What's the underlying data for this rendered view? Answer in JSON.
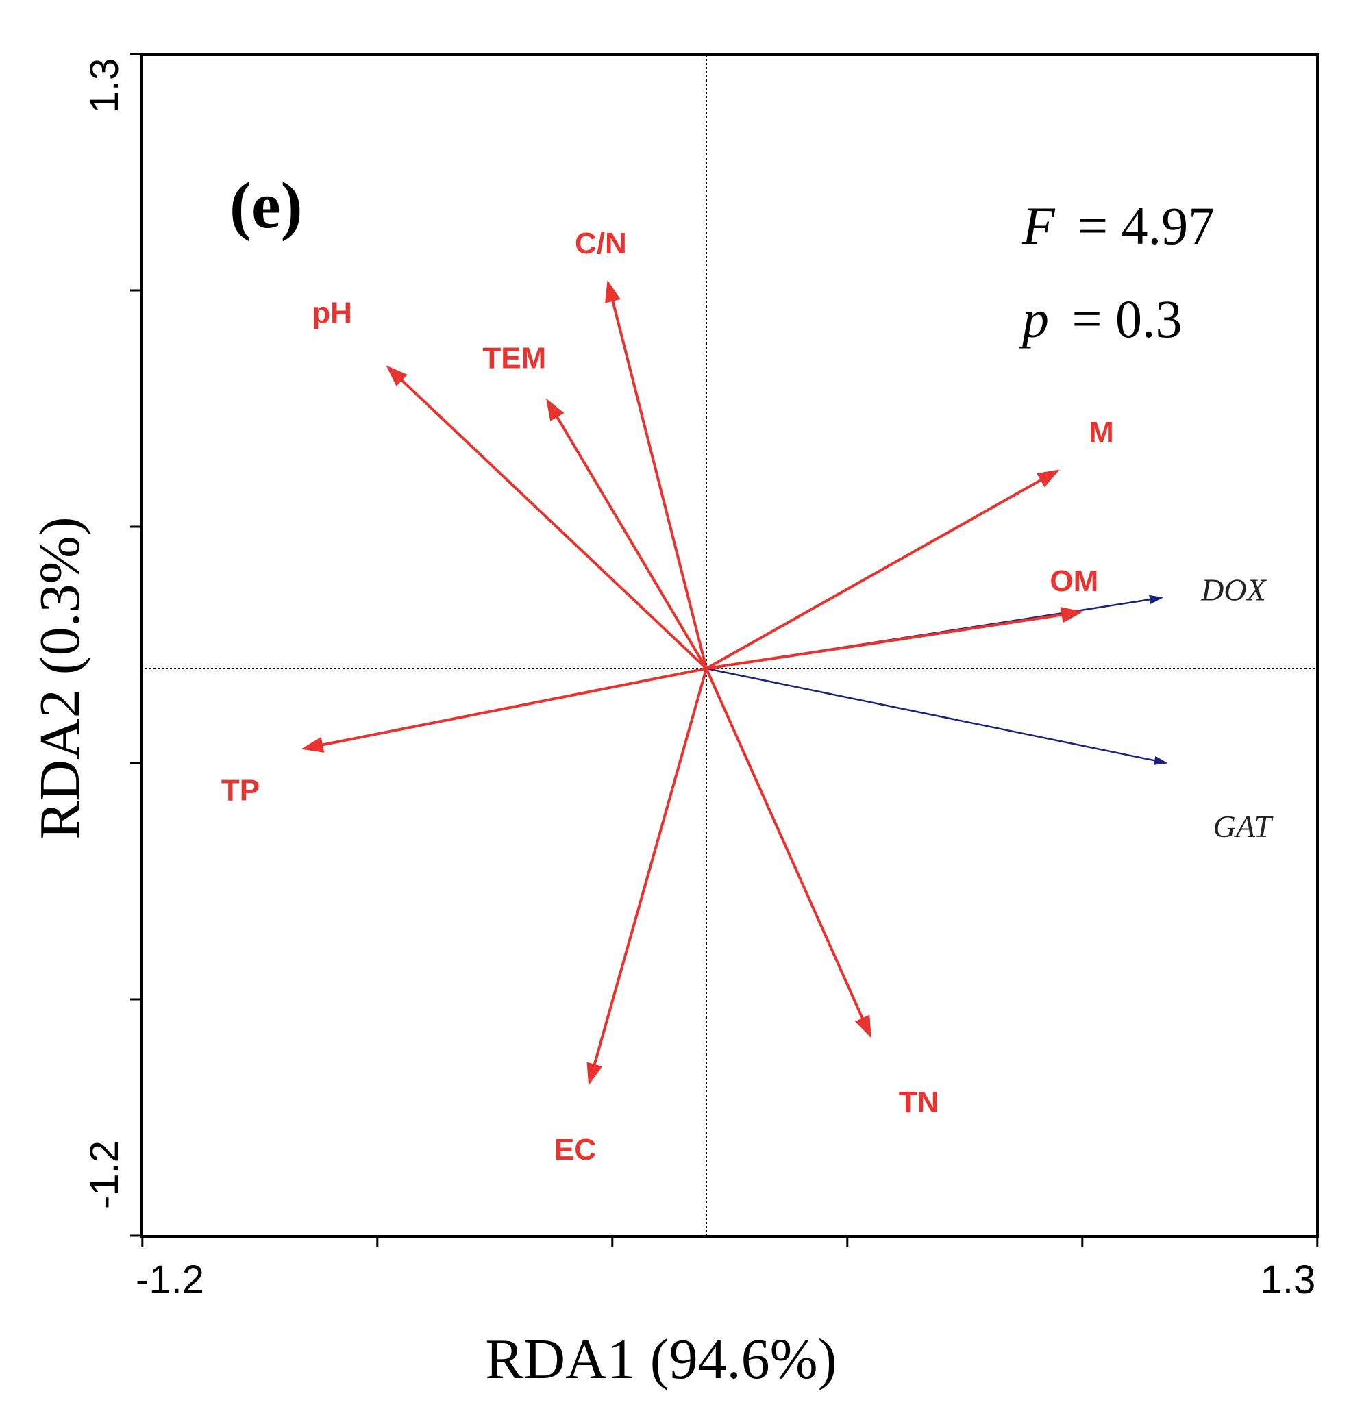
{
  "chart_data": {
    "type": "scatter",
    "subtype": "rda-biplot",
    "panel_label": "(e)",
    "xlabel": "RDA1 (94.6%)",
    "ylabel": "RDA2 (0.3%)",
    "xlim": [
      -1.2,
      1.3
    ],
    "ylim": [
      -1.2,
      1.3
    ],
    "x_tick_labels": [
      "-1.2",
      "1.3"
    ],
    "y_tick_labels": [
      "-1.2",
      "1.3"
    ],
    "stats": {
      "f_symbol": "F",
      "f_value": "= 4.97",
      "p_symbol": "p",
      "p_value": "= 0.3"
    },
    "environment_vectors": [
      {
        "name": "C/N",
        "x": -0.21,
        "y": 0.82
      },
      {
        "name": "pH",
        "x": -0.68,
        "y": 0.64
      },
      {
        "name": "TEM",
        "x": -0.34,
        "y": 0.57
      },
      {
        "name": "M",
        "x": 0.75,
        "y": 0.42
      },
      {
        "name": "OM",
        "x": 0.8,
        "y": 0.12
      },
      {
        "name": "TP",
        "x": -0.86,
        "y": -0.17
      },
      {
        "name": "EC",
        "x": -0.25,
        "y": -0.88
      },
      {
        "name": "TN",
        "x": 0.35,
        "y": -0.78
      }
    ],
    "species_vectors": [
      {
        "name": "DOX",
        "x": 0.97,
        "y": 0.15
      },
      {
        "name": "GAT",
        "x": 0.98,
        "y": -0.2
      }
    ],
    "env_color": "#e8332f",
    "species_color": "#1a237e"
  }
}
